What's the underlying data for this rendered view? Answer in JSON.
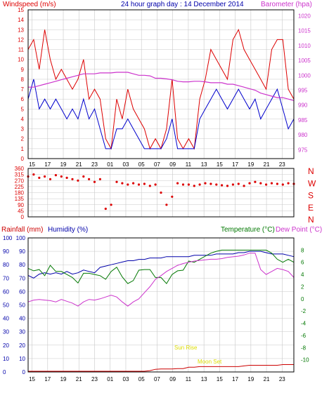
{
  "header": {
    "wind_title": "Windspeed (m/s)",
    "date_title": "24 hour graph day : 14 December 2014",
    "baro_title": "Barometer (hpa)"
  },
  "lower_header": {
    "rain_title": "Rainfall (mm)",
    "humidity_title": "Humidity (%)",
    "temp_title": "Temperature (°C)",
    "dew_title": "Dew Point (°C)"
  },
  "annotations": {
    "sun_rise": "Sun Rise",
    "moon_set": "Moon Set"
  },
  "colors": {
    "frame": "#000000",
    "background": "#ffffff",
    "grid": "#c8c8c8",
    "wind_gust": "#dd0000",
    "wind_avg": "#0000cc",
    "barometer": "#cc33cc",
    "wind_dir": "#dd0000",
    "humidity": "#0000aa",
    "temperature": "#007700",
    "dew_point": "#cc33cc",
    "rain": "#cc0000",
    "annotation": "#dddd00"
  },
  "x_axis": {
    "tick_labels": [
      "15",
      "17",
      "19",
      "21",
      "23",
      "01",
      "03",
      "05",
      "07",
      "09",
      "11",
      "13",
      "15",
      "17",
      "19",
      "21",
      "23"
    ]
  },
  "chart_data": [
    {
      "type": "line",
      "name": "wind-barometer",
      "x_hours": [
        0,
        0.5,
        1,
        1.5,
        2,
        2.5,
        3,
        3.5,
        4,
        4.5,
        5,
        5.5,
        6,
        6.5,
        7,
        7.5,
        8,
        8.5,
        9,
        9.5,
        10,
        10.5,
        11,
        11.5,
        12,
        12.5,
        13,
        13.5,
        14,
        14.5,
        15,
        15.5,
        16,
        16.5,
        17,
        17.5,
        18,
        18.5,
        19,
        19.5,
        20,
        20.5,
        21,
        21.5,
        22,
        22.5,
        23,
        23.5,
        24
      ],
      "series": [
        {
          "name": "Windspeed gust",
          "axis": "left",
          "values": [
            11,
            12,
            9,
            13,
            10,
            8,
            9,
            8,
            7,
            8,
            10,
            6,
            7,
            6,
            2,
            1,
            6,
            4,
            7,
            5,
            4,
            3,
            1,
            2,
            1,
            3,
            8,
            2,
            1,
            2,
            1,
            6,
            8,
            11,
            10,
            9,
            8,
            12,
            13,
            11,
            10,
            9,
            8,
            7,
            11,
            12,
            12,
            7,
            6
          ]
        },
        {
          "name": "Windspeed average",
          "axis": "left",
          "values": [
            6,
            8,
            5,
            6,
            5,
            6,
            5,
            4,
            5,
            4,
            6,
            4,
            5,
            3,
            1,
            1,
            3,
            3,
            4,
            3,
            2,
            1,
            1,
            1,
            1,
            2,
            4,
            1,
            1,
            1,
            1,
            4,
            5,
            6,
            7,
            6,
            5,
            6,
            7,
            6,
            5,
            6,
            4,
            5,
            6,
            7,
            5,
            3,
            4
          ]
        },
        {
          "name": "Barometer",
          "axis": "right",
          "values": [
            996,
            996,
            996.5,
            997,
            997.5,
            998,
            998.5,
            999,
            999.5,
            1000,
            1000.5,
            1000.5,
            1000.5,
            1000.8,
            1000.8,
            1000.8,
            1001,
            1001,
            1001,
            1000.5,
            1000,
            1000,
            999.8,
            999,
            999,
            998.8,
            998.5,
            998,
            997.8,
            997.8,
            998,
            998,
            997.8,
            997.5,
            997.5,
            997.5,
            997,
            997,
            996.5,
            996,
            995.5,
            995,
            994,
            993.5,
            993,
            992.5,
            992.5,
            992,
            991.5
          ]
        }
      ],
      "y_left": {
        "label": "Windspeed (m/s)",
        "range": [
          0,
          15
        ],
        "ticks": [
          0,
          1,
          2,
          3,
          4,
          5,
          6,
          7,
          8,
          9,
          10,
          11,
          12,
          13,
          14,
          15
        ]
      },
      "y_right": {
        "label": "Barometer (hpa)",
        "range": [
          972,
          1022
        ],
        "ticks": [
          975,
          980,
          985,
          990,
          995,
          1000,
          1005,
          1010,
          1015,
          1020
        ]
      }
    },
    {
      "type": "scatter",
      "name": "wind-direction",
      "x_hours": [
        0,
        0.5,
        1,
        1.5,
        2,
        2.5,
        3,
        3.5,
        4,
        4.5,
        5,
        5.5,
        6,
        6.5,
        7,
        7.5,
        8,
        8.5,
        9,
        9.5,
        10,
        10.5,
        11,
        11.5,
        12,
        12.5,
        13,
        13.5,
        14,
        14.5,
        15,
        15.5,
        16,
        16.5,
        17,
        17.5,
        18,
        18.5,
        19,
        19.5,
        20,
        20.5,
        21,
        21.5,
        22,
        22.5,
        23,
        23.5,
        24
      ],
      "series": [
        {
          "name": "Wind direction",
          "values": [
            300,
            315,
            290,
            300,
            280,
            310,
            300,
            290,
            280,
            270,
            300,
            280,
            260,
            280,
            60,
            90,
            260,
            250,
            240,
            250,
            240,
            245,
            230,
            240,
            180,
            90,
            150,
            250,
            240,
            240,
            230,
            240,
            250,
            245,
            240,
            235,
            230,
            240,
            245,
            230,
            250,
            260,
            250,
            240,
            250,
            245,
            240,
            250,
            245
          ]
        }
      ],
      "y_left": {
        "range": [
          0,
          360
        ],
        "ticks": [
          0,
          45,
          90,
          135,
          180,
          225,
          270,
          315,
          360
        ]
      },
      "y_right": {
        "labels": [
          "N",
          "W",
          "S",
          "E",
          "N"
        ]
      }
    },
    {
      "type": "line",
      "name": "temperature-humidity-rain",
      "x_hours": [
        0,
        0.5,
        1,
        1.5,
        2,
        2.5,
        3,
        3.5,
        4,
        4.5,
        5,
        5.5,
        6,
        6.5,
        7,
        7.5,
        8,
        8.5,
        9,
        9.5,
        10,
        10.5,
        11,
        11.5,
        12,
        12.5,
        13,
        13.5,
        14,
        14.5,
        15,
        15.5,
        16,
        16.5,
        17,
        17.5,
        18,
        18.5,
        19,
        19.5,
        20,
        20.5,
        21,
        21.5,
        22,
        22.5,
        23,
        23.5,
        24
      ],
      "series": [
        {
          "name": "Humidity",
          "axis": "left",
          "values": [
            72,
            70,
            73,
            74,
            73,
            74,
            73,
            75,
            73,
            74,
            76,
            75,
            74,
            78,
            79,
            80,
            81,
            82,
            83,
            83,
            84,
            84,
            85,
            85,
            85,
            86,
            86,
            86,
            86,
            86,
            87,
            87,
            87,
            87,
            88,
            88,
            88,
            88,
            89,
            89,
            90,
            90,
            90,
            89,
            88,
            88,
            88,
            87,
            86
          ]
        },
        {
          "name": "Temperature",
          "axis": "right",
          "values": [
            5,
            4.6,
            4.8,
            3.8,
            5.5,
            4.5,
            4.5,
            4,
            3.5,
            2.6,
            4.2,
            4.2,
            4,
            3.8,
            3.2,
            4.5,
            5.2,
            3.6,
            2.5,
            3,
            4.7,
            4.8,
            4.8,
            3.5,
            3.5,
            2.5,
            4,
            4.6,
            4.7,
            6.2,
            6,
            6.5,
            7,
            7.5,
            7.8,
            8,
            8,
            8,
            8,
            8,
            8,
            8,
            8,
            8,
            7.5,
            6.5,
            6,
            6.5,
            6
          ]
        },
        {
          "name": "Dew Point",
          "axis": "right",
          "values": [
            -0.5,
            -0.2,
            -0.1,
            -0.2,
            -0.3,
            -0.5,
            -0.1,
            -0.4,
            -0.7,
            -1.2,
            -0.5,
            -0.1,
            -0.2,
            0,
            0.3,
            0.6,
            0.3,
            -0.5,
            -1.2,
            -0.5,
            0,
            1,
            2,
            3.2,
            3.8,
            4.5,
            5,
            5.5,
            5.8,
            6,
            6.2,
            6.3,
            6.4,
            6.5,
            6.5,
            6.6,
            6.8,
            6.9,
            7,
            7.2,
            7.5,
            7.5,
            4.8,
            4,
            4.5,
            5,
            4.8,
            4.5,
            3.5
          ]
        },
        {
          "name": "Rainfall",
          "axis": "left",
          "values": [
            0.5,
            0.5,
            0.5,
            0.5,
            0.5,
            0.5,
            0.5,
            0.5,
            0.5,
            0.5,
            0.5,
            0.5,
            0.5,
            0.5,
            0.5,
            0.5,
            0.5,
            0.5,
            0.5,
            0.5,
            0.5,
            0.5,
            1,
            2,
            2.2,
            2.2,
            2.2,
            2.5,
            2.5,
            3.5,
            3.5,
            4,
            4,
            4,
            4,
            4,
            4,
            4,
            4,
            4.5,
            5,
            5,
            5,
            5,
            5,
            5,
            5.5,
            5.5,
            5.5
          ]
        }
      ],
      "y_left": {
        "label": "Rainfall (mm) / Humidity (%)",
        "range": [
          0,
          100
        ],
        "ticks": [
          0,
          10,
          20,
          30,
          40,
          50,
          60,
          70,
          80,
          90,
          100
        ]
      },
      "y_right": {
        "label": "Temperature (°C) / Dew Point (°C)",
        "range": [
          -12,
          10
        ],
        "ticks": [
          -10,
          -8,
          -6,
          -4,
          -2,
          0,
          2,
          4,
          6,
          8
        ]
      }
    }
  ]
}
